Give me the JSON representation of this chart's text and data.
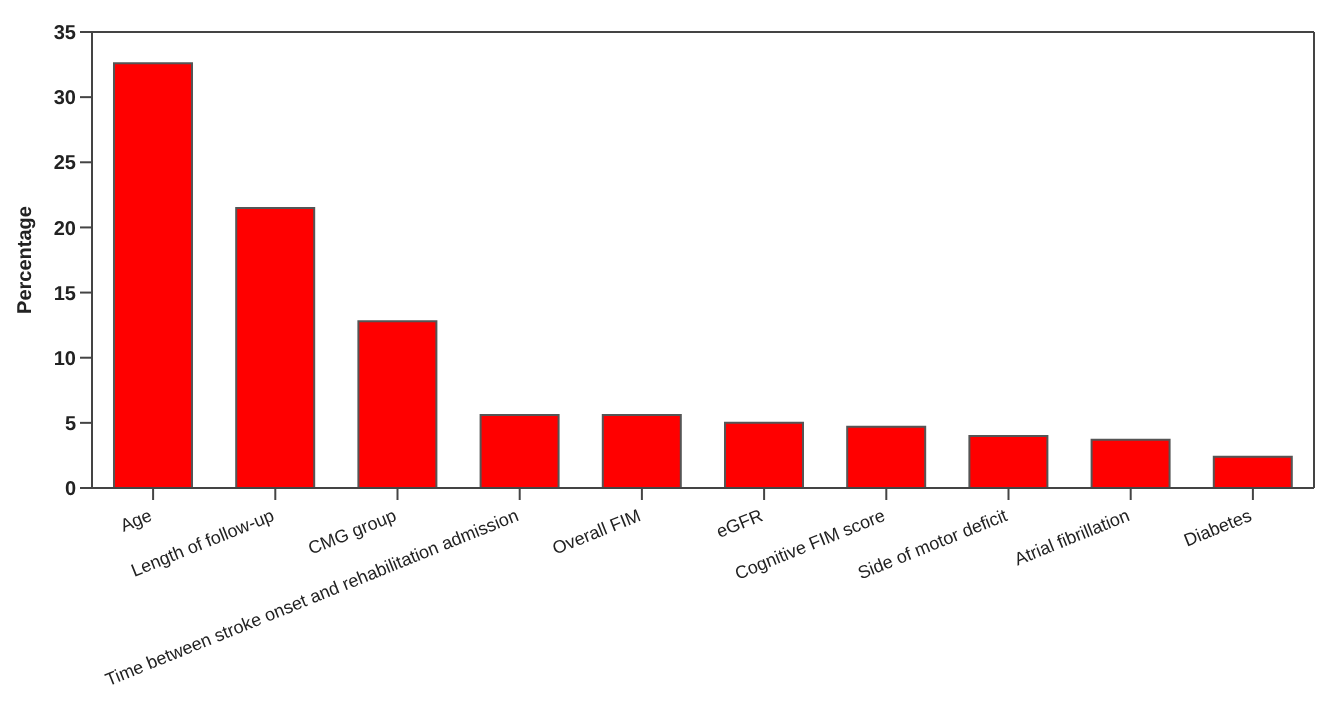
{
  "chart_data": {
    "type": "bar",
    "ylabel": "Percentage",
    "categories": [
      "Age",
      "Length of follow-up",
      "CMG group",
      "Time between stroke onset and rehabilitation admission",
      "Overall FIM",
      "eGFR",
      "Cognitive FIM score",
      "Side of motor deficit",
      "Atrial fibrillation",
      "Diabetes"
    ],
    "values": [
      32.6,
      21.5,
      12.8,
      5.6,
      5.6,
      5.0,
      4.7,
      4.0,
      3.7,
      2.4
    ],
    "color": "#ff0000",
    "ylim": [
      0,
      35
    ],
    "yticks": [
      0,
      5,
      10,
      15,
      20,
      25,
      30,
      35
    ],
    "grid": false
  }
}
